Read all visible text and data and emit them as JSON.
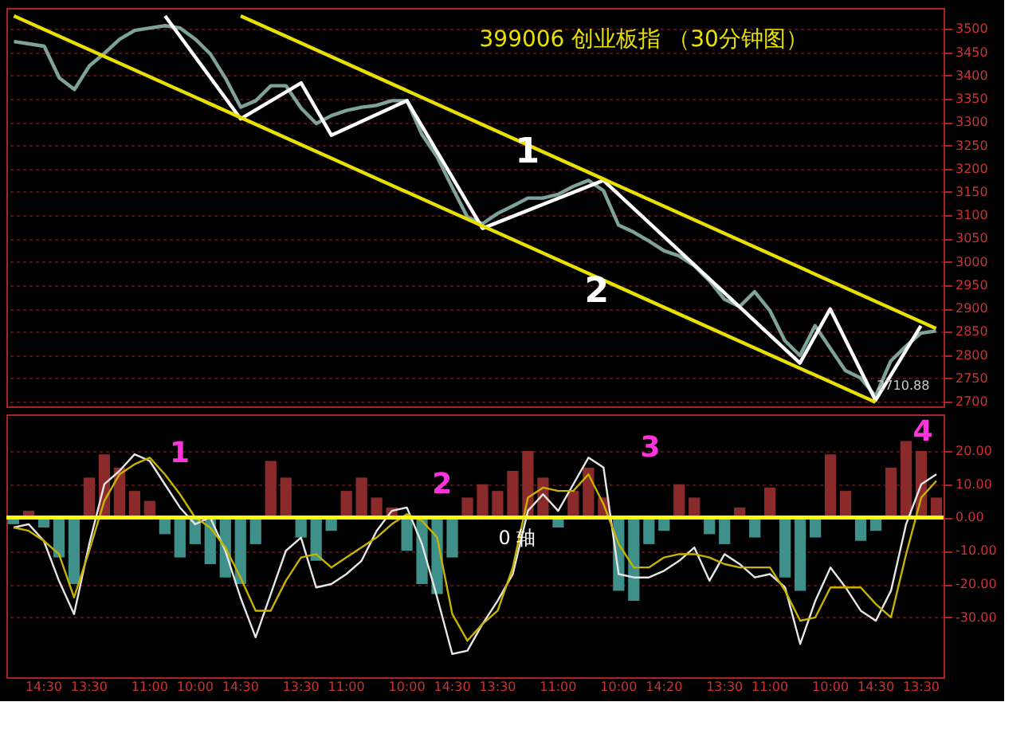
{
  "chart_data": [
    {
      "type": "line",
      "title": "399006 创业板指 （30分钟图）",
      "ylim": [
        2690,
        3545
      ],
      "categories": [
        null,
        null,
        null,
        null,
        null,
        null,
        null,
        null,
        null,
        null,
        null,
        null,
        null,
        null,
        null,
        null,
        null,
        null,
        null,
        null,
        null,
        null,
        null,
        null,
        null,
        null,
        null,
        null,
        null,
        null,
        null,
        null,
        null,
        null,
        null,
        null,
        null,
        null,
        null,
        null,
        null,
        null,
        null,
        null,
        null,
        null,
        null,
        null,
        null,
        null,
        null,
        null,
        null,
        null,
        null,
        null,
        null,
        null,
        null,
        null,
        null,
        null
      ],
      "yticks": [
        2700,
        2750,
        2800,
        2850,
        2900,
        2950,
        3000,
        3050,
        3100,
        3150,
        3200,
        3250,
        3300,
        3350,
        3400,
        3450,
        3500
      ],
      "grid": "y",
      "tick_labels": "y",
      "series": [
        {
          "color": "#7fa39a",
          "values": [
            3473,
            3468,
            3463,
            3395,
            3370,
            3421,
            3448,
            3478,
            3497,
            3502,
            3507,
            3502,
            3478,
            3446,
            3394,
            3332,
            3346,
            3378,
            3378,
            3330,
            3297,
            3314,
            3325,
            3332,
            3336,
            3346,
            3346,
            3273,
            3225,
            3160,
            3096,
            3082,
            3104,
            3120,
            3137,
            3137,
            3145,
            3162,
            3175,
            3153,
            3079,
            3064,
            3045,
            3024,
            3013,
            2992,
            2960,
            2920,
            2904,
            2936,
            2896,
            2831,
            2799,
            2863,
            2815,
            2767,
            2751,
            2712,
            2787,
            2819,
            2847,
            2852
          ]
        },
        {
          "color": "#ffffff",
          "values": [
            null,
            null,
            null,
            null,
            null,
            null,
            null,
            null,
            null,
            null,
            3528,
            null,
            null,
            null,
            null,
            3307,
            null,
            null,
            null,
            3384,
            null,
            3272,
            null,
            null,
            null,
            null,
            3346,
            null,
            null,
            null,
            null,
            3072,
            null,
            null,
            null,
            null,
            null,
            null,
            null,
            3175,
            null,
            null,
            null,
            null,
            null,
            null,
            null,
            null,
            null,
            null,
            null,
            null,
            2783,
            null,
            2899,
            null,
            null,
            2703,
            null,
            null,
            2863,
            null
          ]
        },
        {
          "color": "#e8e000",
          "values": [
            3528,
            null,
            null,
            null,
            null,
            null,
            null,
            null,
            null,
            null,
            null,
            null,
            null,
            null,
            null,
            null,
            null,
            null,
            null,
            null,
            null,
            null,
            null,
            null,
            null,
            null,
            null,
            null,
            null,
            null,
            null,
            null,
            null,
            null,
            null,
            null,
            null,
            null,
            null,
            null,
            null,
            null,
            null,
            null,
            null,
            null,
            null,
            null,
            null,
            null,
            null,
            null,
            null,
            null,
            null,
            null,
            null,
            2699,
            null,
            null,
            null,
            null
          ]
        },
        {
          "color": "#e8e000",
          "values": [
            null,
            null,
            null,
            null,
            null,
            null,
            null,
            null,
            null,
            null,
            null,
            null,
            null,
            null,
            null,
            3528,
            null,
            null,
            null,
            null,
            null,
            null,
            null,
            null,
            null,
            null,
            null,
            null,
            null,
            null,
            null,
            null,
            null,
            null,
            null,
            null,
            null,
            null,
            null,
            null,
            null,
            null,
            null,
            null,
            null,
            null,
            null,
            null,
            null,
            null,
            null,
            null,
            null,
            null,
            null,
            null,
            null,
            null,
            null,
            null,
            null,
            2857
          ]
        }
      ],
      "annotations": [
        "1",
        "2",
        "2710.88"
      ]
    },
    {
      "type": "bar",
      "ylim": [
        -48,
        31
      ],
      "categories": [
        null,
        null,
        "14:30",
        null,
        null,
        "13:30",
        null,
        null,
        null,
        "11:00",
        null,
        null,
        "10:00",
        null,
        null,
        "14:30",
        null,
        null,
        null,
        "13:30",
        null,
        null,
        "11:00",
        null,
        null,
        null,
        "10:00",
        null,
        null,
        "14:30",
        null,
        null,
        "13:30",
        null,
        null,
        null,
        "11:00",
        null,
        null,
        null,
        "10:00",
        null,
        null,
        "14:20",
        null,
        null,
        null,
        "13:30",
        null,
        null,
        "11:00",
        null,
        null,
        null,
        "10:00",
        null,
        null,
        "14:30",
        null,
        null,
        "13:30",
        null
      ],
      "yticks": [
        {
          "value": -30,
          "label": "-30.00"
        },
        {
          "value": -20,
          "label": "-20.00"
        },
        {
          "value": -10,
          "label": "-10.00"
        },
        {
          "value": 0,
          "label": "0.00"
        },
        {
          "value": 10,
          "label": "10.00"
        },
        {
          "value": 20,
          "label": "20.00"
        }
      ],
      "grid": "y",
      "series": [
        {
          "type": "bar",
          "values": [
            -2,
            2,
            -3,
            -12,
            -20,
            12,
            19,
            15,
            8,
            5,
            -5,
            -12,
            -8,
            -14,
            -18,
            -20,
            -8,
            17,
            12,
            -6,
            -13,
            -4,
            8,
            12,
            6,
            3,
            -10,
            -20,
            -23,
            -12,
            6,
            10,
            8,
            14,
            20,
            12,
            -3,
            8,
            15,
            6,
            -22,
            -25,
            -8,
            -4,
            10,
            6,
            -5,
            -8,
            3,
            -6,
            9,
            -18,
            -22,
            -6,
            19,
            8,
            -7,
            -4,
            15,
            23,
            20,
            6
          ],
          "colors": [
            "#3f8f8a",
            "#8b2a2a",
            "#3f8f8a",
            "#3f8f8a",
            "#3f8f8a",
            "#8b2a2a",
            "#8b2a2a",
            "#8b2a2a",
            "#8b2a2a",
            "#8b2a2a",
            "#3f8f8a",
            "#3f8f8a",
            "#3f8f8a",
            "#3f8f8a",
            "#3f8f8a",
            "#3f8f8a",
            "#3f8f8a",
            "#8b2a2a",
            "#8b2a2a",
            "#3f8f8a",
            "#3f8f8a",
            "#3f8f8a",
            "#8b2a2a",
            "#8b2a2a",
            "#8b2a2a",
            "#8b2a2a",
            "#3f8f8a",
            "#3f8f8a",
            "#3f8f8a",
            "#3f8f8a",
            "#8b2a2a",
            "#8b2a2a",
            "#8b2a2a",
            "#8b2a2a",
            "#8b2a2a",
            "#8b2a2a",
            "#3f8f8a",
            "#8b2a2a",
            "#8b2a2a",
            "#8b2a2a",
            "#3f8f8a",
            "#3f8f8a",
            "#3f8f8a",
            "#3f8f8a",
            "#8b2a2a",
            "#8b2a2a",
            "#3f8f8a",
            "#3f8f8a",
            "#8b2a2a",
            "#3f8f8a",
            "#8b2a2a",
            "#3f8f8a",
            "#3f8f8a",
            "#3f8f8a",
            "#8b2a2a",
            "#8b2a2a",
            "#3f8f8a",
            "#3f8f8a",
            "#8b2a2a",
            "#8b2a2a",
            "#8b2a2a",
            "#8b2a2a"
          ]
        },
        {
          "type": "line",
          "color": "#e6e6e6",
          "values": [
            -3,
            -2,
            -7,
            -19,
            -29,
            -8,
            10,
            14,
            19,
            17,
            10,
            3,
            -2,
            0,
            -10,
            -24,
            -36,
            -23,
            -10,
            -6,
            -21,
            -20,
            -17,
            -13,
            -4,
            2,
            3,
            -8,
            -24,
            -41,
            -40,
            -32,
            -25,
            -17,
            2,
            7,
            2,
            10,
            18,
            15,
            -17,
            -18,
            -18,
            -16,
            -13,
            -9,
            -19,
            -11,
            -14,
            -18,
            -17,
            -21,
            -38,
            -25,
            -15,
            -21,
            -28,
            -31,
            -22,
            -2,
            10,
            13
          ]
        },
        {
          "type": "line",
          "color": "#c8b400",
          "values": [
            -3,
            -4,
            -7,
            -11,
            -24,
            -10,
            5,
            13,
            16,
            18,
            13,
            7,
            0,
            -3,
            -9,
            -18,
            -28,
            -28,
            -19,
            -12,
            -11,
            -15,
            -12,
            -9,
            -6,
            -2,
            1,
            -1,
            -6,
            -29,
            -37,
            -32,
            -28,
            -15,
            6,
            9,
            8,
            8,
            13,
            4,
            -8,
            -15,
            -15,
            -12,
            -11,
            -11,
            -12,
            -14,
            -15,
            -15,
            -15,
            -22,
            -31,
            -30,
            -21,
            -21,
            -21,
            -26,
            -30,
            -11,
            6,
            11
          ]
        }
      ],
      "ref_lines": [
        {
          "axis": "y",
          "value": 0,
          "color": "#ffff00"
        }
      ],
      "annotations": [
        "1",
        "2",
        "3",
        "4",
        "0 轴"
      ]
    }
  ]
}
